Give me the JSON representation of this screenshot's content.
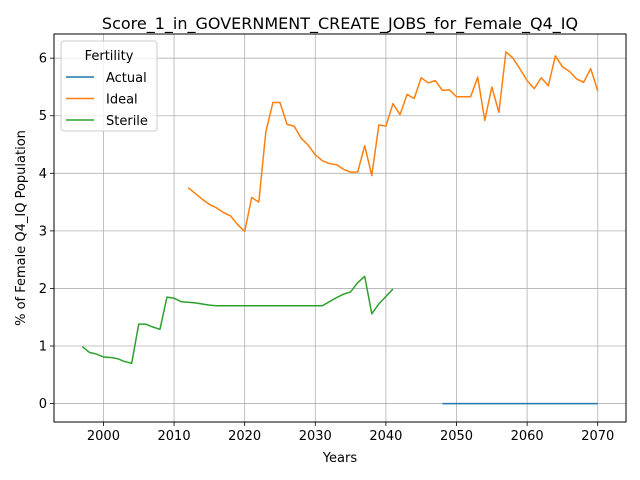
{
  "chart_data": {
    "type": "line",
    "title": "Score_1_in_GOVERNMENT_CREATE_JOBS_for_Female_Q4_IQ",
    "xlabel": "Years",
    "ylabel": "% of Female Q4_IQ Population",
    "xlim": [
      1993,
      2074
    ],
    "ylim": [
      -0.32,
      6.42
    ],
    "grid": true,
    "legend": {
      "title": "Fertility",
      "placement": "upper-left"
    },
    "xticks": [
      2000,
      2010,
      2020,
      2030,
      2040,
      2050,
      2060,
      2070
    ],
    "xtick_labels": [
      "2000",
      "2010",
      "2020",
      "2030",
      "2040",
      "2050",
      "2060",
      "2070"
    ],
    "yticks": [
      0,
      1,
      2,
      3,
      4,
      5,
      6
    ],
    "ytick_labels": [
      "0",
      "1",
      "2",
      "3",
      "4",
      "5",
      "6"
    ],
    "series": [
      {
        "name": "Actual",
        "color": "#1f77b4",
        "x": [
          2048,
          2070
        ],
        "y": [
          0.0,
          0.0
        ]
      },
      {
        "name": "Ideal",
        "color": "#ff7f0e",
        "x": [
          2012,
          2013,
          2014,
          2015,
          2016,
          2017,
          2018,
          2019,
          2020,
          2021,
          2022,
          2023,
          2024,
          2025,
          2026,
          2027,
          2028,
          2029,
          2030,
          2031,
          2032,
          2033,
          2034,
          2035,
          2036,
          2037,
          2038,
          2039,
          2040,
          2041,
          2042,
          2043,
          2044,
          2045,
          2046,
          2047,
          2048,
          2049,
          2050,
          2051,
          2052,
          2053,
          2054,
          2055,
          2056,
          2057,
          2058,
          2059,
          2060,
          2061,
          2062,
          2063,
          2064,
          2065,
          2066,
          2067,
          2068,
          2069,
          2070
        ],
        "y": [
          3.75,
          3.65,
          3.55,
          3.46,
          3.4,
          3.32,
          3.26,
          3.11,
          2.99,
          3.58,
          3.5,
          4.72,
          5.23,
          5.23,
          4.85,
          4.82,
          4.61,
          4.49,
          4.32,
          4.22,
          4.17,
          4.15,
          4.07,
          4.02,
          4.02,
          4.48,
          3.96,
          4.84,
          4.82,
          5.21,
          5.02,
          5.37,
          5.3,
          5.66,
          5.57,
          5.61,
          5.44,
          5.45,
          5.33,
          5.33,
          5.33,
          5.67,
          4.92,
          5.5,
          5.06,
          6.11,
          6.0,
          5.81,
          5.61,
          5.47,
          5.66,
          5.52,
          6.04,
          5.85,
          5.77,
          5.64,
          5.58,
          5.82,
          5.43
        ]
      },
      {
        "name": "Sterile",
        "color": "#2ca02c",
        "x": [
          1997,
          1998,
          1999,
          2000,
          2001,
          2002,
          2003,
          2004,
          2005,
          2006,
          2007,
          2008,
          2009,
          2010,
          2011,
          2012,
          2013,
          2014,
          2015,
          2016,
          2017,
          2018,
          2019,
          2020,
          2021,
          2022,
          2023,
          2024,
          2025,
          2026,
          2027,
          2028,
          2029,
          2030,
          2031,
          2032,
          2033,
          2034,
          2035,
          2036,
          2037,
          2038,
          2039,
          2040,
          2041
        ],
        "y": [
          0.99,
          0.89,
          0.86,
          0.81,
          0.8,
          0.78,
          0.73,
          0.7,
          1.38,
          1.38,
          1.33,
          1.29,
          1.85,
          1.83,
          1.77,
          1.76,
          1.75,
          1.73,
          1.71,
          1.7,
          1.7,
          1.7,
          1.7,
          1.7,
          1.7,
          1.7,
          1.7,
          1.7,
          1.7,
          1.7,
          1.7,
          1.7,
          1.7,
          1.7,
          1.7,
          1.77,
          1.84,
          1.9,
          1.94,
          2.1,
          2.21,
          1.56,
          1.73,
          1.86,
          1.99
        ]
      }
    ]
  }
}
